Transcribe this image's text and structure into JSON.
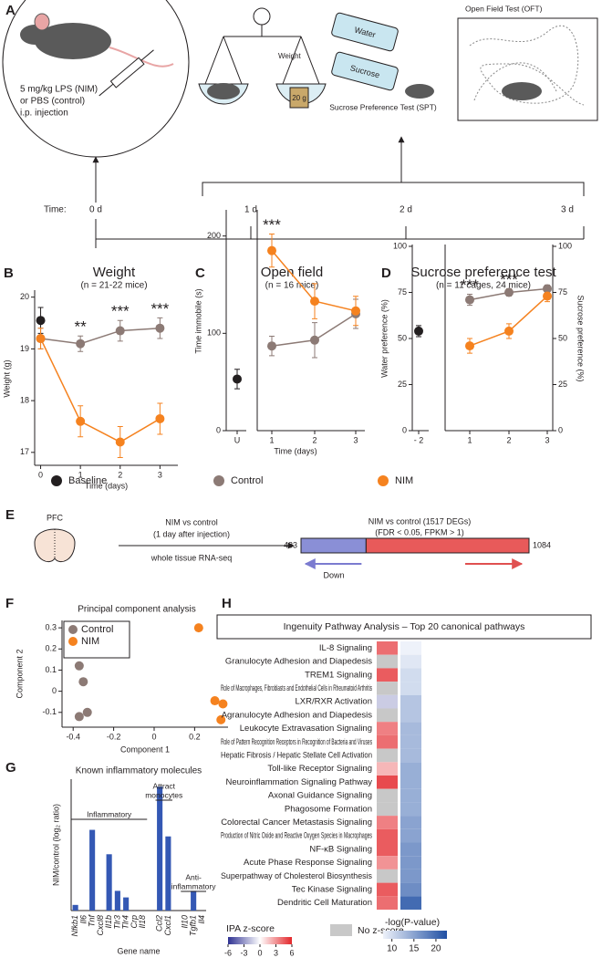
{
  "panel_a": {
    "label": "A",
    "injection": [
      "5 mg/kg LPS (NIM)",
      "or PBS (control)",
      "i.p. injection"
    ],
    "weight": "Weight",
    "weight_tag": "20 g",
    "water": "Water",
    "sucrose": "Sucrose",
    "spt": "Sucrose Preference Test (SPT)",
    "oft": "Open Field Test (OFT)",
    "time_label": "Time:",
    "timepoints": [
      "0 d",
      "1 d",
      "2 d",
      "3 d"
    ]
  },
  "panel_e": {
    "label": "E",
    "region": "PFC",
    "comparison": "NIM vs control",
    "timing": "(1 day after injection)",
    "method": "whole tissue RNA-seq",
    "result": "NIM vs control (1517 DEGs)",
    "criteria": "(FDR < 0.05, FPKM > 1)",
    "down": 433,
    "up": 1084,
    "down_label": "Down"
  },
  "chart_data": [
    {
      "panel": "B",
      "type": "line",
      "title": "Weight",
      "subtitle": "(n = 21-22 mice)",
      "x_label": "Time (days)",
      "y_label": "Weight (g)",
      "x": [
        0,
        1,
        2,
        3
      ],
      "xlim": [
        -0.15,
        3.45
      ],
      "xticks": [
        0,
        1,
        2,
        3
      ],
      "ylim": [
        16.75,
        20.1
      ],
      "yticks": [
        17,
        18,
        19,
        20
      ],
      "series": [
        {
          "name": "Baseline",
          "color": "#231f20",
          "values": [
            19.55,
            null,
            null,
            null
          ],
          "errors": [
            0.25,
            null,
            null,
            null
          ]
        },
        {
          "name": "Control",
          "color": "#8c7a75",
          "values": [
            19.2,
            19.1,
            19.35,
            19.4
          ],
          "errors": [
            0.2,
            0.15,
            0.2,
            0.2
          ]
        },
        {
          "name": "NIM",
          "color": "#f5821f",
          "values": [
            19.2,
            17.6,
            17.2,
            17.65
          ],
          "errors": [
            0.2,
            0.3,
            0.3,
            0.3
          ]
        }
      ],
      "annotations": [
        {
          "x": 1,
          "text": "**"
        },
        {
          "x": 2,
          "text": "***"
        },
        {
          "x": 3,
          "text": "***"
        }
      ]
    },
    {
      "panel": "C",
      "type": "line",
      "title": "Open field",
      "subtitle": "(n = 16 mice)",
      "x_label": "Time (days)",
      "y_label": "Time immobile (s)",
      "categories": [
        "U",
        "1",
        "2",
        "3"
      ],
      "ylim": [
        0,
        225
      ],
      "yticks": [
        0,
        100,
        200
      ],
      "series": [
        {
          "name": "Baseline",
          "color": "#231f20",
          "values": [
            53,
            null,
            null,
            null
          ],
          "errors": [
            10,
            null,
            null,
            null
          ]
        },
        {
          "name": "Control",
          "color": "#8c7a75",
          "values": [
            null,
            87,
            93,
            120
          ],
          "errors": [
            null,
            10,
            18,
            15
          ]
        },
        {
          "name": "NIM",
          "color": "#f5821f",
          "values": [
            null,
            185,
            133,
            123
          ],
          "errors": [
            null,
            17,
            18,
            15
          ]
        }
      ],
      "annotations": [
        {
          "x": 1,
          "text": "***"
        }
      ]
    },
    {
      "panel": "D",
      "type": "line",
      "title": "Sucrose preference test",
      "subtitle": "(n = 11 cages, 24 mice)",
      "y_label": "Water preference (%)",
      "y2_label": "Sucrose preference (%)",
      "categories": [
        "- 2",
        "1",
        "2",
        "3"
      ],
      "ylim": [
        0,
        100
      ],
      "yticks": [
        0,
        25,
        50,
        75,
        100
      ],
      "y2lim": [
        0,
        100
      ],
      "y2ticks": [
        0,
        25,
        50,
        75,
        100
      ],
      "series": [
        {
          "name": "Baseline",
          "color": "#231f20",
          "values": [
            54,
            null,
            null,
            null
          ],
          "errors": [
            3,
            null,
            null,
            null
          ]
        },
        {
          "name": "Control",
          "color": "#8c7a75",
          "values": [
            null,
            71,
            75,
            77
          ],
          "errors": [
            null,
            3,
            2,
            2
          ]
        },
        {
          "name": "NIM",
          "color": "#f5821f",
          "values": [
            null,
            46,
            54,
            73
          ],
          "errors": [
            null,
            4,
            4,
            3
          ]
        }
      ],
      "annotations": [
        {
          "x": 1,
          "text": "***"
        },
        {
          "x": 2,
          "text": "***"
        }
      ]
    },
    {
      "panel": "F",
      "type": "scatter",
      "title": "Principal component analysis",
      "x_label": "Component 1",
      "y_label": "Component 2",
      "xlim": [
        -0.455,
        0.365
      ],
      "xticks": [
        -0.4,
        -0.2,
        0,
        0.2
      ],
      "ylim": [
        -0.17,
        0.335
      ],
      "yticks": [
        -0.1,
        0,
        0.1,
        0.2,
        0.3
      ],
      "series": [
        {
          "name": "Control",
          "color": "#8c7a75",
          "x": [
            -0.37,
            -0.35,
            -0.37,
            -0.33
          ],
          "values": [
            0.12,
            0.045,
            -0.12,
            -0.1
          ]
        },
        {
          "name": "NIM",
          "color": "#f5821f",
          "x": [
            0.22,
            0.3,
            0.34,
            0.33
          ],
          "values": [
            0.3,
            -0.045,
            -0.06,
            -0.135
          ]
        }
      ],
      "legend": "upper left"
    },
    {
      "panel": "G",
      "type": "bar",
      "title": "Known inflammatory molecules",
      "x_label": "Gene name",
      "y_label": "NIM/control (log₂ ratio)",
      "color": "#3458b4",
      "categories": [
        "Nfkb1",
        "Il6",
        "Tnf",
        "Cxcl8",
        "Il1b",
        "Tlr3",
        "Tlr4",
        "Crp",
        "Il18",
        null,
        "Ccl2",
        "Cxcl1",
        null,
        "Il10",
        "Tgfb1",
        "Il4"
      ],
      "values": [
        0.3,
        0,
        4.3,
        0,
        3.0,
        1.05,
        0.7,
        0,
        0,
        null,
        6.6,
        3.95,
        null,
        0,
        1.05,
        0
      ],
      "ylim": [
        0,
        7
      ],
      "groups": [
        {
          "label": [
            "Inflammatory"
          ],
          "from": 0,
          "to": 8
        },
        {
          "label": [
            "Attract",
            "monocytes"
          ],
          "from": 10,
          "to": 11
        },
        {
          "label": [
            "Anti-",
            "inflammatory"
          ],
          "from": 13,
          "to": 15
        }
      ]
    },
    {
      "panel": "H",
      "type": "heatmap",
      "title": "Ingenuity Pathway Analysis – Top 20 canonical pathways",
      "rows": [
        "IL-8 Signaling",
        "Granulocyte Adhesion and Diapedesis",
        "TREM1 Signaling",
        "Role of Macrophages, Fibroblasts and Endothelial Cells in Rheumatoid Arthritis",
        "LXR/RXR Activation",
        "Agranulocyte Adhesion and Diapedesis",
        "Leukocyte Extravasation Signaling",
        "Role of Pattern Recognition Receptors in Recognition of Bacteria and Viruses",
        "Hepatic Fibrosis / Hepatic Stellate Cell Activation",
        "Toll-like Receptor Signaling",
        "Neuroinflammation Signaling Pathway",
        "Axonal Guidance Signaling",
        "Phagosome Formation",
        "Colorectal Cancer Metastasis Signaling",
        "Production of Nitric Oxide and Reactive Oxygen Species in Macrophages",
        "NF-κB Signaling",
        "Acute Phase Response Signaling",
        "Superpathway of Cholesterol Biosynthesis",
        "Tec Kinase Signaling",
        "Dendritic Cell Maturation"
      ],
      "zscores": [
        4,
        null,
        4.5,
        null,
        -1.5,
        null,
        3.5,
        4,
        null,
        2,
        5,
        null,
        null,
        3.5,
        4.5,
        4.5,
        3,
        null,
        4.5,
        4
      ],
      "neglogp": [
        8,
        9,
        10,
        10,
        12,
        12,
        13,
        13,
        13,
        14,
        14,
        14,
        14,
        15,
        15,
        16,
        16,
        16,
        17,
        20
      ],
      "z_title": "IPA z-score",
      "zlim": [
        -6,
        6
      ],
      "zticks": [
        -6,
        -3,
        0,
        3,
        6
      ],
      "null_label": "No z-score",
      "p_title": "-log(P-value)",
      "plim": [
        8,
        22.5
      ],
      "pticks": [
        10,
        15,
        20
      ]
    }
  ]
}
